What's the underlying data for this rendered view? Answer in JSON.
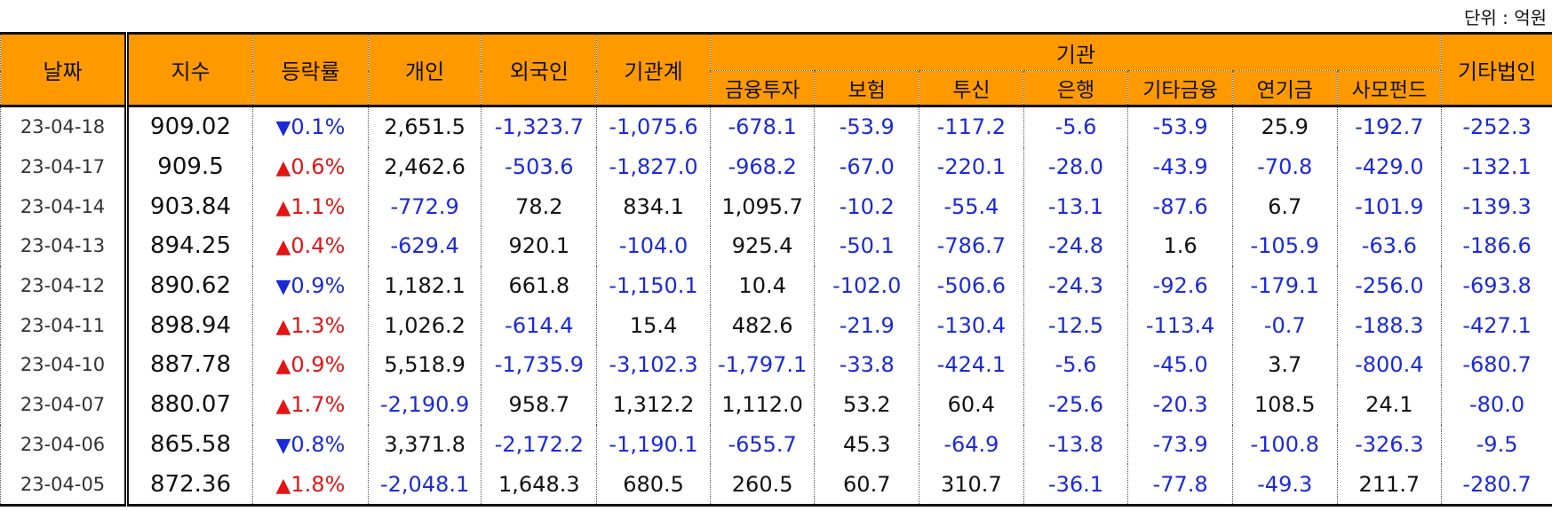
{
  "unit_label": "단위 : 억원",
  "headers": {
    "date": "날짜",
    "index": "지수",
    "change": "등락률",
    "individual": "개인",
    "foreign": "외국인",
    "institution_total": "기관계",
    "institution_group": "기관",
    "sub": [
      "금융투자",
      "보험",
      "투신",
      "은행",
      "기타금융",
      "연기금",
      "사모펀드"
    ],
    "other_corp": "기타법인"
  },
  "colors": {
    "header_bg": "#ff9900",
    "negative": "#1a2ad8",
    "up": "#e41414",
    "down": "#1a2ad8"
  },
  "rows": [
    {
      "date": "23-04-18",
      "index": "909.02",
      "dir": "down",
      "arrow": "▼",
      "change": "0.1%",
      "vals": [
        "2,651.5",
        "-1,323.7",
        "-1,075.6",
        "-678.1",
        "-53.9",
        "-117.2",
        "-5.6",
        "-53.9",
        "25.9",
        "-192.7",
        "-252.3"
      ]
    },
    {
      "date": "23-04-17",
      "index": "909.5",
      "dir": "up",
      "arrow": "▲",
      "change": "0.6%",
      "vals": [
        "2,462.6",
        "-503.6",
        "-1,827.0",
        "-968.2",
        "-67.0",
        "-220.1",
        "-28.0",
        "-43.9",
        "-70.8",
        "-429.0",
        "-132.1"
      ]
    },
    {
      "date": "23-04-14",
      "index": "903.84",
      "dir": "up",
      "arrow": "▲",
      "change": "1.1%",
      "vals": [
        "-772.9",
        "78.2",
        "834.1",
        "1,095.7",
        "-10.2",
        "-55.4",
        "-13.1",
        "-87.6",
        "6.7",
        "-101.9",
        "-139.3"
      ]
    },
    {
      "date": "23-04-13",
      "index": "894.25",
      "dir": "up",
      "arrow": "▲",
      "change": "0.4%",
      "vals": [
        "-629.4",
        "920.1",
        "-104.0",
        "925.4",
        "-50.1",
        "-786.7",
        "-24.8",
        "1.6",
        "-105.9",
        "-63.6",
        "-186.6"
      ]
    },
    {
      "date": "23-04-12",
      "index": "890.62",
      "dir": "down",
      "arrow": "▼",
      "change": "0.9%",
      "vals": [
        "1,182.1",
        "661.8",
        "-1,150.1",
        "10.4",
        "-102.0",
        "-506.6",
        "-24.3",
        "-92.6",
        "-179.1",
        "-256.0",
        "-693.8"
      ]
    },
    {
      "date": "23-04-11",
      "index": "898.94",
      "dir": "up",
      "arrow": "▲",
      "change": "1.3%",
      "vals": [
        "1,026.2",
        "-614.4",
        "15.4",
        "482.6",
        "-21.9",
        "-130.4",
        "-12.5",
        "-113.4",
        "-0.7",
        "-188.3",
        "-427.1"
      ]
    },
    {
      "date": "23-04-10",
      "index": "887.78",
      "dir": "up",
      "arrow": "▲",
      "change": "0.9%",
      "vals": [
        "5,518.9",
        "-1,735.9",
        "-3,102.3",
        "-1,797.1",
        "-33.8",
        "-424.1",
        "-5.6",
        "-45.0",
        "3.7",
        "-800.4",
        "-680.7"
      ]
    },
    {
      "date": "23-04-07",
      "index": "880.07",
      "dir": "up",
      "arrow": "▲",
      "change": "1.7%",
      "vals": [
        "-2,190.9",
        "958.7",
        "1,312.2",
        "1,112.0",
        "53.2",
        "60.4",
        "-25.6",
        "-20.3",
        "108.5",
        "24.1",
        "-80.0"
      ]
    },
    {
      "date": "23-04-06",
      "index": "865.58",
      "dir": "down",
      "arrow": "▼",
      "change": "0.8%",
      "vals": [
        "3,371.8",
        "-2,172.2",
        "-1,190.1",
        "-655.7",
        "45.3",
        "-64.9",
        "-13.8",
        "-73.9",
        "-100.8",
        "-326.3",
        "-9.5"
      ]
    },
    {
      "date": "23-04-05",
      "index": "872.36",
      "dir": "up",
      "arrow": "▲",
      "change": "1.8%",
      "vals": [
        "-2,048.1",
        "1,648.3",
        "680.5",
        "260.5",
        "60.7",
        "310.7",
        "-36.1",
        "-77.8",
        "-49.3",
        "211.7",
        "-280.7"
      ]
    }
  ]
}
